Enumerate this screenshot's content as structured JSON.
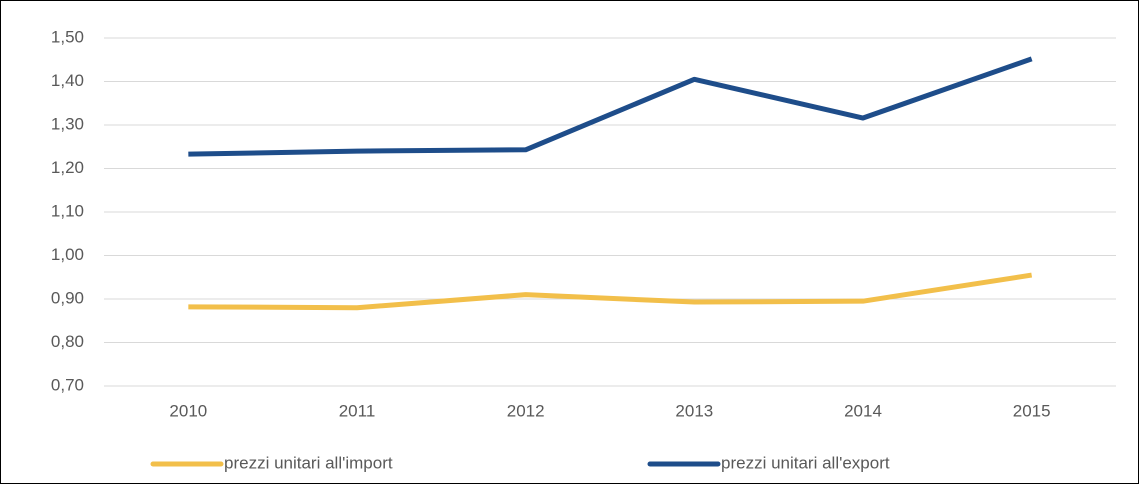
{
  "chart_data": {
    "type": "line",
    "categories": [
      "2010",
      "2011",
      "2012",
      "2013",
      "2014",
      "2015"
    ],
    "series": [
      {
        "name": "prezzi unitari all'import",
        "color": "#f2bf4a",
        "values": [
          0.882,
          0.88,
          0.91,
          0.893,
          0.895,
          0.955
        ]
      },
      {
        "name": "prezzi unitari all'export",
        "color": "#1e4d8a",
        "values": [
          1.233,
          1.24,
          1.243,
          1.405,
          1.316,
          1.452
        ]
      }
    ],
    "ylim": [
      0.7,
      1.5
    ],
    "yticks": [
      {
        "value": 0.7,
        "label": "0,70"
      },
      {
        "value": 0.8,
        "label": "0,80"
      },
      {
        "value": 0.9,
        "label": "0,90"
      },
      {
        "value": 1.0,
        "label": "1,00"
      },
      {
        "value": 1.1,
        "label": "1,10"
      },
      {
        "value": 1.2,
        "label": "1,20"
      },
      {
        "value": 1.3,
        "label": "1,30"
      },
      {
        "value": 1.4,
        "label": "1,40"
      },
      {
        "value": 1.5,
        "label": "1,50"
      }
    ],
    "grid": true,
    "legend": "bottom"
  }
}
